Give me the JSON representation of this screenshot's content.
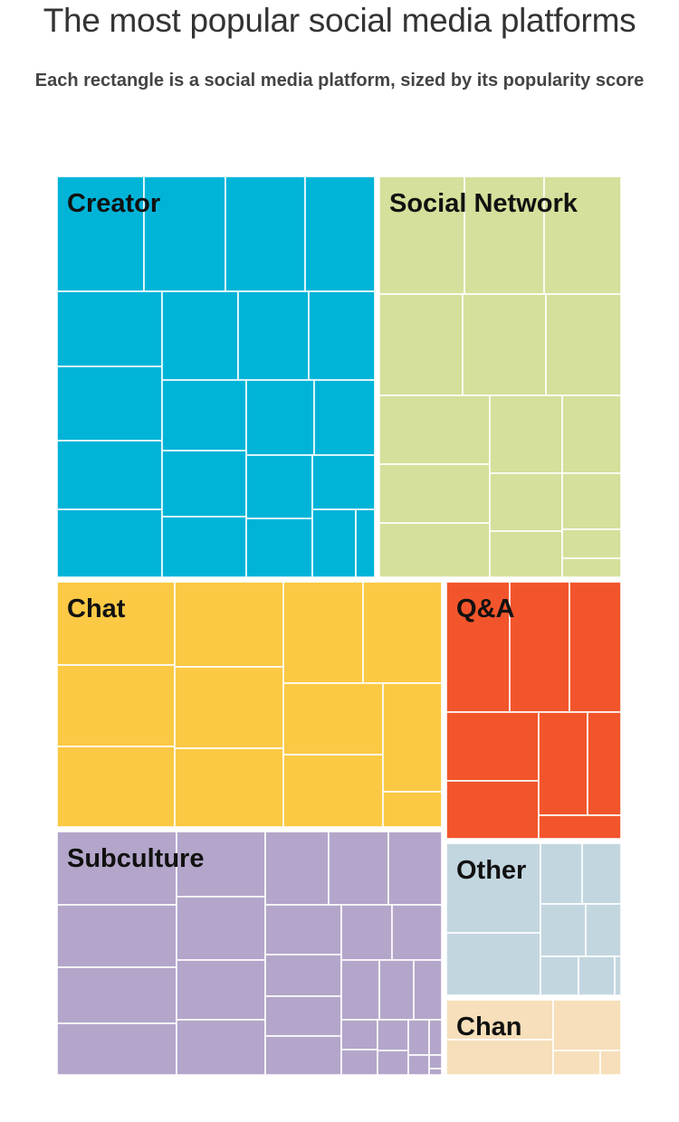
{
  "header": {
    "title": "The most popular social media platforms",
    "subtitle": "Each rectangle is a social media platform, sized by its popularity score"
  },
  "chart_data": {
    "type": "treemap",
    "title": "The most popular social media platforms",
    "subtitle": "Each rectangle is a social media platform, sized by its popularity score",
    "groups": [
      {
        "label": "Creator",
        "color": "#00b4d8",
        "platform_count": 25,
        "relative_area": 15.5
      },
      {
        "label": "Social Network",
        "color": "#d4e09b",
        "platform_count": 19,
        "relative_area": 11.7
      },
      {
        "label": "Chat",
        "color": "#fcc945",
        "platform_count": 12,
        "relative_area": 11.6
      },
      {
        "label": "Q&A",
        "color": "#f2552c",
        "platform_count": 8,
        "relative_area": 5.4
      },
      {
        "label": "Subculture",
        "color": "#b3a6ca",
        "platform_count": 29,
        "relative_area": 11.3
      },
      {
        "label": "Other",
        "color": "#c2d6e0",
        "platform_count": 9,
        "relative_area": 3.3
      },
      {
        "label": "Chan",
        "color": "#f6dfba",
        "platform_count": 5,
        "relative_area": 1.6
      }
    ]
  }
}
